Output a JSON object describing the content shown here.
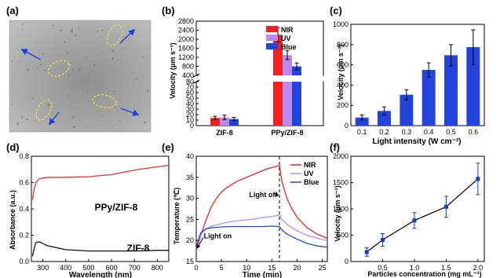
{
  "panel_labels": [
    "(a)",
    "(b)",
    "(c)",
    "(d)",
    "(e)",
    "(f)"
  ],
  "colors": {
    "nir": "#ee2222",
    "uv": "#bb88ee",
    "blue": "#2244dd",
    "bar": "#2244dd",
    "ppy_curve": "#e8312a",
    "zif_curve": "#111111",
    "marker": "#1a37c8",
    "micro_bg": "#a9aaa9",
    "ellipse": "#f0e04a",
    "arrow": "#1f3ce0"
  },
  "panel_a": {
    "image": "optical micrograph of particles with dashed yellow ellipses and blue direction arrows"
  },
  "chart_data": [
    {
      "panel": "b",
      "type": "bar",
      "ylabel": "Velocity (μm s⁻¹)",
      "categories": [
        "ZIF-8",
        "PPy/ZIF-8"
      ],
      "series": [
        {
          "name": "NIR",
          "values": [
            14,
            2200
          ],
          "errors": [
            3,
            320
          ]
        },
        {
          "name": "UV",
          "values": [
            15,
            1300
          ],
          "errors": [
            4,
            200
          ]
        },
        {
          "name": "Blue",
          "values": [
            12,
            800
          ],
          "errors": [
            3,
            150
          ]
        }
      ],
      "yticks_lower": [
        "0",
        "10",
        "20",
        "30",
        "40",
        "50",
        "60",
        "70",
        "80"
      ],
      "yticks_upper": [
        "400",
        "800",
        "1200",
        "1600",
        "2000",
        "2400",
        "2800"
      ],
      "axis_break": [
        80,
        400
      ],
      "legend_position": "top-right"
    },
    {
      "panel": "c",
      "type": "bar",
      "xlabel": "Light intensity (W cm⁻²)",
      "ylabel": "Velocity (μm s⁻¹)",
      "categories": [
        "0.1",
        "0.2",
        "0.3",
        "0.4",
        "0.5",
        "0.6"
      ],
      "values": [
        80,
        145,
        305,
        550,
        695,
        775
      ],
      "errors": [
        25,
        40,
        50,
        70,
        105,
        170
      ],
      "yticks": [
        "0",
        "200",
        "400",
        "600",
        "800",
        "1000"
      ],
      "ylim": [
        0,
        1000
      ]
    },
    {
      "panel": "d",
      "type": "line",
      "xlabel": "Wavelength (nm)",
      "ylabel": "Absorbance (a.u.)",
      "xlim": [
        250,
        850
      ],
      "ylim": [
        0,
        0.8
      ],
      "xticks": [
        "300",
        "400",
        "500",
        "600",
        "700",
        "800"
      ],
      "yticks": [
        "0.0",
        "0.2",
        "0.4",
        "0.6",
        "0.8"
      ],
      "series": [
        {
          "name": "PPy/ZIF-8",
          "x": [
            255,
            262,
            270,
            285,
            320,
            400,
            500,
            600,
            700,
            800,
            850
          ],
          "y": [
            0.47,
            0.55,
            0.6,
            0.63,
            0.64,
            0.64,
            0.645,
            0.66,
            0.695,
            0.72,
            0.73
          ]
        },
        {
          "name": "ZIF-8",
          "x": [
            255,
            262,
            270,
            285,
            320,
            400,
            500,
            600,
            700,
            800,
            850
          ],
          "y": [
            0.04,
            0.1,
            0.145,
            0.15,
            0.12,
            0.09,
            0.08,
            0.08,
            0.08,
            0.085,
            0.085
          ]
        }
      ]
    },
    {
      "panel": "e",
      "type": "line",
      "xlabel": "Time (min)",
      "ylabel": "Temperature (℃)",
      "xlim": [
        0,
        26
      ],
      "ylim": [
        15,
        40
      ],
      "xticks": [
        "0",
        "5",
        "10",
        "15",
        "20",
        "25"
      ],
      "yticks": [
        "15",
        "20",
        "25",
        "30",
        "35",
        "40"
      ],
      "annotations": [
        {
          "text": "Light off",
          "x": 16.5,
          "y": 31
        },
        {
          "text": "Light on",
          "x": 0.5,
          "y": 18
        }
      ],
      "series": [
        {
          "name": "NIR",
          "x": [
            0,
            0.5,
            1,
            2,
            3,
            4,
            5,
            6,
            8,
            10,
            12,
            14,
            16.5,
            17,
            18,
            19,
            20,
            22,
            24,
            26
          ],
          "y": [
            18,
            19.5,
            21.5,
            25,
            28,
            30,
            31.5,
            32.5,
            34,
            35,
            36,
            37,
            37.8,
            34,
            30,
            27.5,
            25.5,
            23,
            21.5,
            20.5
          ]
        },
        {
          "name": "UV",
          "x": [
            0,
            0.5,
            1,
            2,
            3,
            5,
            7,
            9,
            11,
            13,
            15,
            16.5,
            17,
            18,
            20,
            22,
            24,
            26
          ],
          "y": [
            18,
            20,
            21.5,
            22.8,
            23.4,
            24,
            24.5,
            24.8,
            25,
            25.4,
            25.7,
            26,
            25,
            23.8,
            22.3,
            21.2,
            20.5,
            20
          ]
        },
        {
          "name": "Blue",
          "x": [
            0,
            0.5,
            1,
            2,
            3,
            5,
            7,
            9,
            11,
            13,
            15,
            16.5,
            17,
            18,
            20,
            22,
            24,
            26
          ],
          "y": [
            18,
            20.5,
            22,
            22.8,
            23,
            23.2,
            23.3,
            23.3,
            23.3,
            23.3,
            23.4,
            23.3,
            22.5,
            21.5,
            20.3,
            19.3,
            18.7,
            18.4
          ]
        }
      ],
      "legend_position": "top-right"
    },
    {
      "panel": "f",
      "type": "scatter",
      "xlabel": "Particles concentration (mg mL⁻¹)",
      "ylabel": "Velocity (μm s⁻¹)",
      "xlim": [
        0,
        2.1
      ],
      "ylim": [
        0,
        2000
      ],
      "xticks": [
        "0.5",
        "1.0",
        "1.5",
        "2.0"
      ],
      "yticks": [
        "0",
        "500",
        "1000",
        "1500",
        "2000"
      ],
      "x": [
        0.25,
        0.5,
        1.0,
        1.5,
        2.0
      ],
      "y": [
        180,
        410,
        780,
        1040,
        1570
      ],
      "errors": [
        80,
        120,
        150,
        200,
        300
      ]
    }
  ]
}
